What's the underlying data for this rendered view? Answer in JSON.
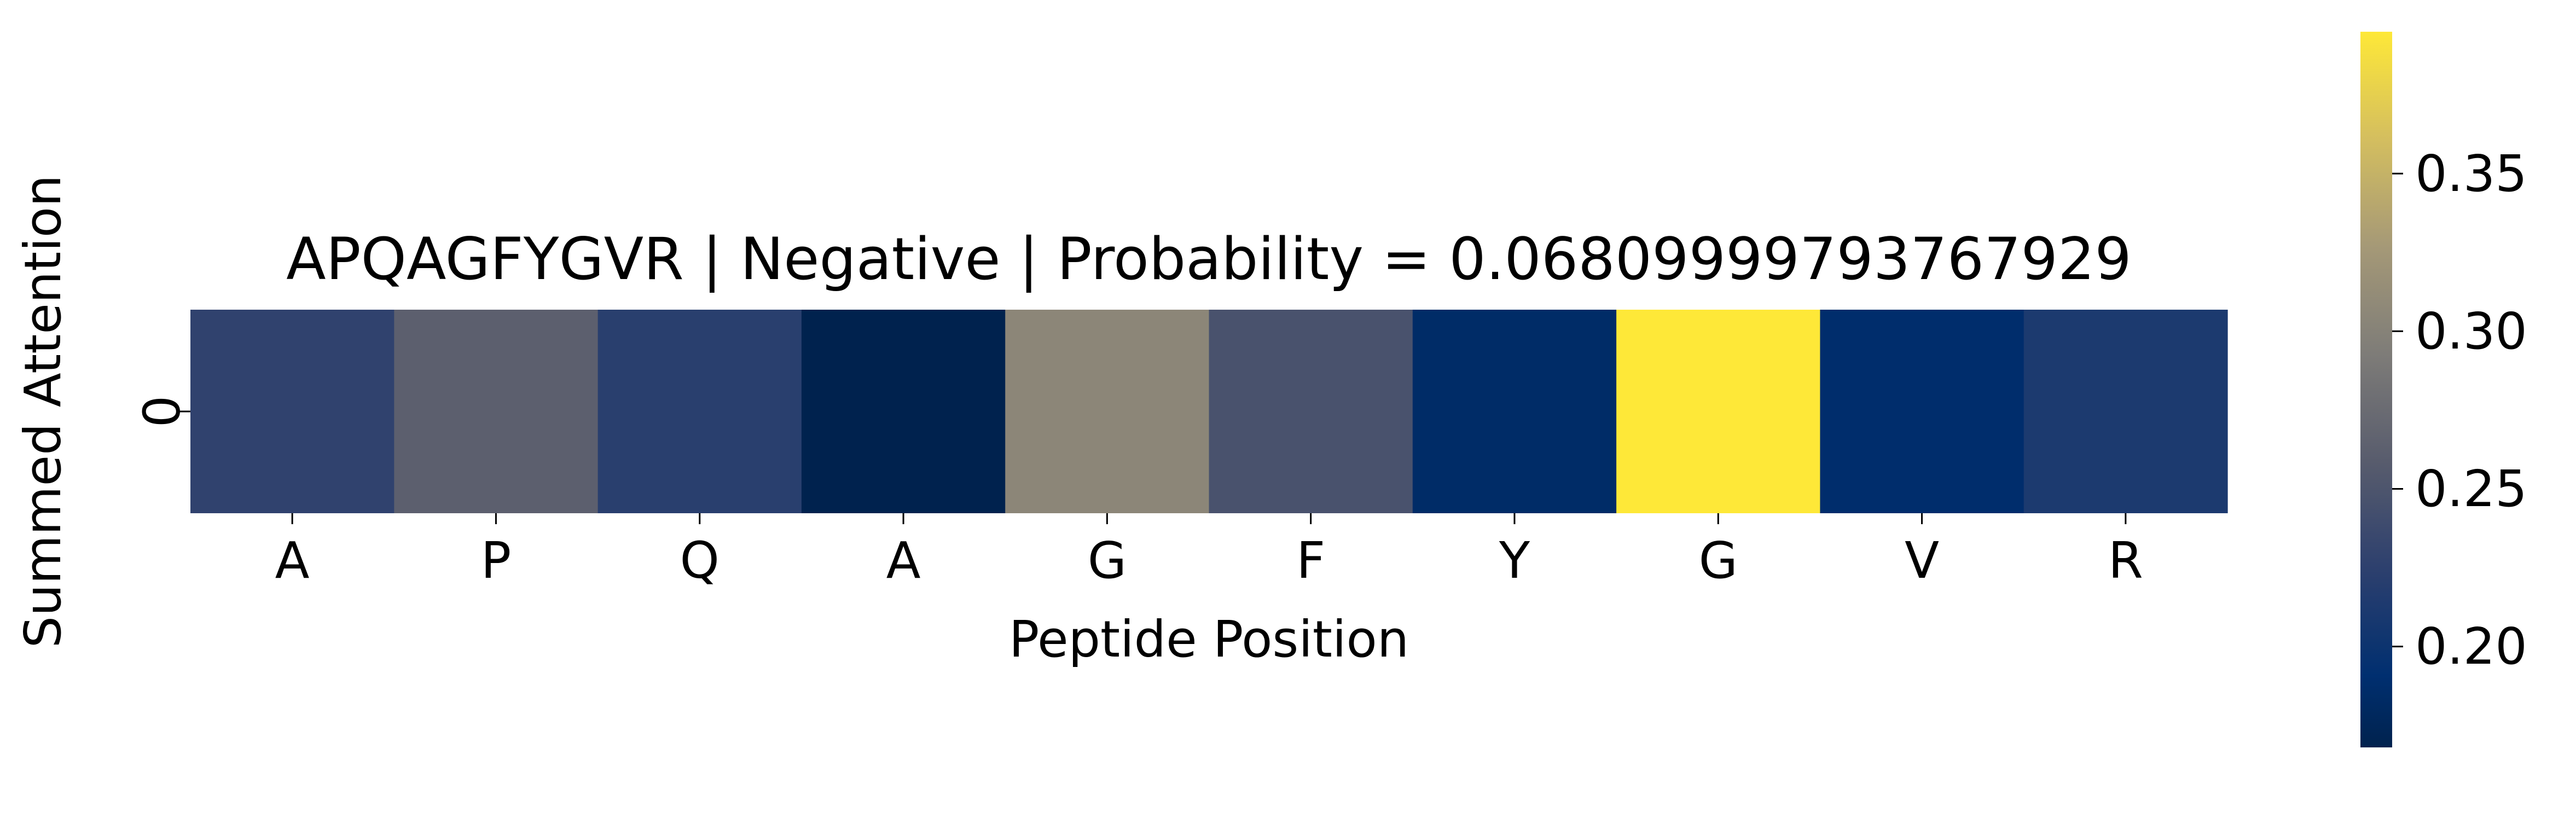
{
  "chart_data": {
    "type": "heatmap",
    "title": "APQAGFYGVR | Negative | Probability = 0.06809999793767929",
    "xlabel": "Peptide Position",
    "ylabel": "Summed Attention",
    "x_categories": [
      "A",
      "P",
      "Q",
      "A",
      "G",
      "F",
      "Y",
      "G",
      "V",
      "R"
    ],
    "y_categories": [
      "0"
    ],
    "values": [
      [
        0.227,
        0.262,
        0.222,
        0.168,
        0.305,
        0.247,
        0.185,
        0.395,
        0.188,
        0.212
      ]
    ],
    "colormap": "cividis",
    "colorbar": {
      "range": [
        0.168,
        0.395
      ],
      "ticks": [
        0.2,
        0.25,
        0.3,
        0.35
      ],
      "tick_labels": [
        "0.20",
        "0.25",
        "0.30",
        "0.35"
      ],
      "position": "right"
    },
    "grid": false,
    "legend": "none"
  }
}
